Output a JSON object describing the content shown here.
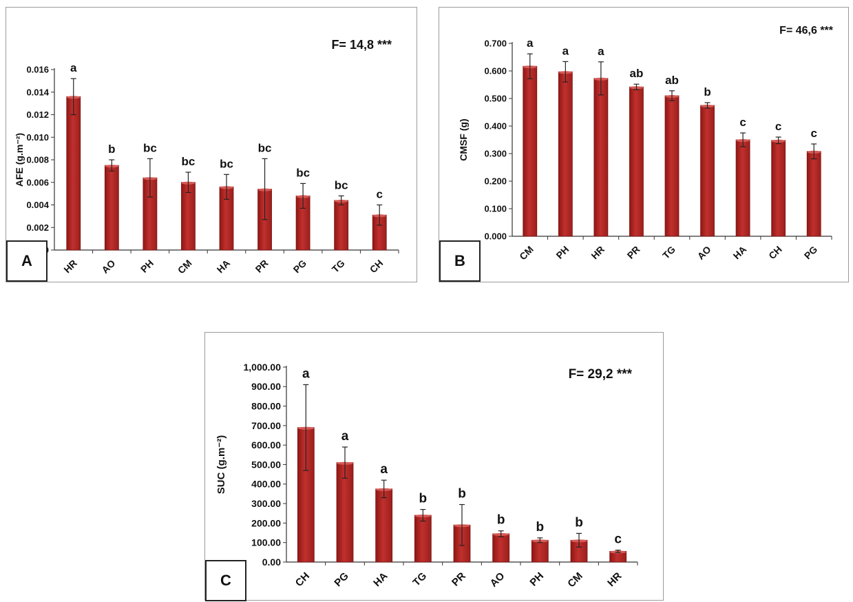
{
  "charts": [
    {
      "panel_label": "A",
      "f_stat": "F= 14,8 ***",
      "chart_data": {
        "type": "bar",
        "ylabel": "AFE (g.m⁻²)",
        "categories": [
          "HR",
          "AO",
          "PH",
          "CM",
          "HA",
          "PR",
          "PG",
          "TG",
          "CH"
        ],
        "values": [
          0.0136,
          0.0075,
          0.0064,
          0.006,
          0.0056,
          0.0054,
          0.0048,
          0.0044,
          0.0031
        ],
        "errors": [
          0.0016,
          0.0005,
          0.0017,
          0.0009,
          0.0011,
          0.0027,
          0.0011,
          0.0004,
          0.0009
        ],
        "letters": [
          "a",
          "b",
          "bc",
          "bc",
          "bc",
          "bc",
          "bc",
          "bc",
          "c"
        ],
        "ylim": [
          0,
          0.016
        ],
        "yticks": [
          "0.000",
          "0.002",
          "0.004",
          "0.006",
          "0.008",
          "0.010",
          "0.012",
          "0.014",
          "0.016"
        ],
        "grid": false,
        "bar_color": "#c0302e"
      }
    },
    {
      "panel_label": "B",
      "f_stat": "F= 46,6 ***",
      "chart_data": {
        "type": "bar",
        "ylabel": "CMSF (g)",
        "categories": [
          "CM",
          "PH",
          "HR",
          "PR",
          "TG",
          "AO",
          "HA",
          "CH",
          "PG"
        ],
        "values": [
          0.617,
          0.597,
          0.573,
          0.542,
          0.51,
          0.475,
          0.35,
          0.348,
          0.308
        ],
        "errors": [
          0.045,
          0.037,
          0.06,
          0.01,
          0.018,
          0.01,
          0.025,
          0.012,
          0.027
        ],
        "letters": [
          "a",
          "a",
          "a",
          "ab",
          "ab",
          "b",
          "c",
          "c",
          "c"
        ],
        "ylim": [
          0,
          0.7
        ],
        "yticks": [
          "0.000",
          "0.100",
          "0.200",
          "0.300",
          "0.400",
          "0.500",
          "0.600",
          "0.700"
        ],
        "grid": false,
        "bar_color": "#c0302e"
      }
    },
    {
      "panel_label": "C",
      "f_stat": "F= 29,2 ***",
      "chart_data": {
        "type": "bar",
        "ylabel": "SUC (g.m⁻²)",
        "categories": [
          "CH",
          "PG",
          "HA",
          "TG",
          "PR",
          "AO",
          "PH",
          "CM",
          "HR"
        ],
        "values": [
          690,
          510,
          375,
          240,
          190,
          145,
          112,
          112,
          55
        ],
        "errors": [
          220,
          80,
          45,
          30,
          105,
          15,
          12,
          35,
          6
        ],
        "letters": [
          "a",
          "a",
          "a",
          "b",
          "b",
          "b",
          "b",
          "b",
          "c"
        ],
        "ylim": [
          0,
          1000
        ],
        "yticks": [
          "0.00",
          "100.00",
          "200.00",
          "300.00",
          "400.00",
          "500.00",
          "600.00",
          "700.00",
          "800.00",
          "900.00",
          "1,000.00"
        ],
        "grid": false,
        "bar_color": "#c0302e"
      }
    }
  ]
}
